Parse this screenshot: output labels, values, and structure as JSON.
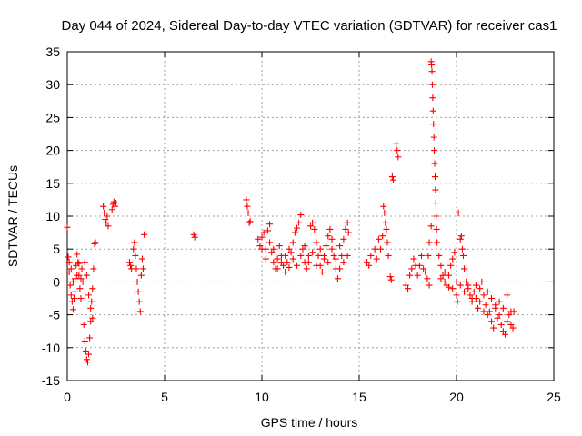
{
  "chart_data": {
    "type": "scatter",
    "title": "Day 044 of 2024, Sidereal Day-to-day VTEC variation (SDTVAR) for receiver cas1",
    "xlabel": "GPS time / hours",
    "ylabel": "SDTVAR / TECUs",
    "xlim": [
      0,
      25
    ],
    "ylim": [
      -15,
      35
    ],
    "xticks": [
      0,
      5,
      10,
      15,
      20,
      25
    ],
    "yticks": [
      -15,
      -10,
      -5,
      0,
      5,
      10,
      15,
      20,
      25,
      30,
      35
    ],
    "xtick_labels": [
      "0",
      "5",
      "10",
      "15",
      "20",
      "25"
    ],
    "ytick_labels": [
      "-15",
      "-10",
      "-5",
      "0",
      "5",
      "10",
      "15",
      "20",
      "25",
      "30",
      "35"
    ],
    "grid": true,
    "marker": "+",
    "color": "#ff0000",
    "series": [
      {
        "name": "SDTVAR",
        "points": [
          [
            0.0,
            8.3
          ],
          [
            0.05,
            3.8
          ],
          [
            0.1,
            1.5
          ],
          [
            0.15,
            -0.5
          ],
          [
            0.2,
            -2.0
          ],
          [
            0.25,
            -3.0
          ],
          [
            0.3,
            -4.2
          ],
          [
            0.35,
            -2.5
          ],
          [
            0.4,
            0.5
          ],
          [
            0.45,
            2.5
          ],
          [
            0.5,
            4.2
          ],
          [
            0.55,
            3.0
          ],
          [
            0.6,
            1.0
          ],
          [
            0.65,
            -1.0
          ],
          [
            0.7,
            -2.5
          ],
          [
            0.75,
            2.0
          ],
          [
            0.8,
            0.0
          ],
          [
            0.85,
            -6.5
          ],
          [
            0.9,
            -9.0
          ],
          [
            0.95,
            -10.5
          ],
          [
            1.0,
            -11.8
          ],
          [
            1.05,
            -12.2
          ],
          [
            1.1,
            -11.0
          ],
          [
            1.15,
            -8.5
          ],
          [
            1.2,
            -6.0
          ],
          [
            1.25,
            -3.0
          ],
          [
            1.3,
            -1.0
          ],
          [
            1.35,
            2.0
          ],
          [
            1.4,
            5.8
          ],
          [
            1.45,
            6.0
          ],
          [
            0.1,
            3.0
          ],
          [
            0.2,
            2.0
          ],
          [
            0.3,
            0.0
          ],
          [
            0.4,
            -1.5
          ],
          [
            0.5,
            1.0
          ],
          [
            0.6,
            2.8
          ],
          [
            0.7,
            0.5
          ],
          [
            0.9,
            3.0
          ],
          [
            1.0,
            1.0
          ],
          [
            1.1,
            -2.0
          ],
          [
            1.2,
            -4.0
          ],
          [
            1.3,
            -5.5
          ],
          [
            1.85,
            11.5
          ],
          [
            1.9,
            10.5
          ],
          [
            1.95,
            9.5
          ],
          [
            2.0,
            9.0
          ],
          [
            2.05,
            10.0
          ],
          [
            2.1,
            8.5
          ],
          [
            2.3,
            11.0
          ],
          [
            2.35,
            11.8
          ],
          [
            2.4,
            12.2
          ],
          [
            2.45,
            11.5
          ],
          [
            2.5,
            12.0
          ],
          [
            3.2,
            3.0
          ],
          [
            3.25,
            2.5
          ],
          [
            3.3,
            2.0
          ],
          [
            3.4,
            5.0
          ],
          [
            3.45,
            6.0
          ],
          [
            3.5,
            4.0
          ],
          [
            3.55,
            2.0
          ],
          [
            3.6,
            0.0
          ],
          [
            3.65,
            -1.5
          ],
          [
            3.7,
            -3.0
          ],
          [
            3.75,
            -4.5
          ],
          [
            3.8,
            1.0
          ],
          [
            3.85,
            3.5
          ],
          [
            3.9,
            2.0
          ],
          [
            3.95,
            7.2
          ],
          [
            6.5,
            7.2
          ],
          [
            6.55,
            6.8
          ],
          [
            9.2,
            12.5
          ],
          [
            9.25,
            11.5
          ],
          [
            9.3,
            10.5
          ],
          [
            9.35,
            9.0
          ],
          [
            9.4,
            9.2
          ],
          [
            9.8,
            6.5
          ],
          [
            9.9,
            5.5
          ],
          [
            10.0,
            6.8
          ],
          [
            10.1,
            7.5
          ],
          [
            10.2,
            5.0
          ],
          [
            10.3,
            7.8
          ],
          [
            10.4,
            8.8
          ],
          [
            10.5,
            4.5
          ],
          [
            10.6,
            3.0
          ],
          [
            10.7,
            2.0
          ],
          [
            10.8,
            3.5
          ],
          [
            10.9,
            5.5
          ],
          [
            11.0,
            4.0
          ],
          [
            11.1,
            2.5
          ],
          [
            11.2,
            1.5
          ],
          [
            11.3,
            3.0
          ],
          [
            11.4,
            2.2
          ],
          [
            11.5,
            4.5
          ],
          [
            11.6,
            6.0
          ],
          [
            11.7,
            7.5
          ],
          [
            11.8,
            8.2
          ],
          [
            11.9,
            9.0
          ],
          [
            12.0,
            10.2
          ],
          [
            12.1,
            5.0
          ],
          [
            12.2,
            3.0
          ],
          [
            12.3,
            2.0
          ],
          [
            12.4,
            4.0
          ],
          [
            12.5,
            8.5
          ],
          [
            12.6,
            9.0
          ],
          [
            12.7,
            8.0
          ],
          [
            12.8,
            6.0
          ],
          [
            12.9,
            4.0
          ],
          [
            13.0,
            2.5
          ],
          [
            13.1,
            1.5
          ],
          [
            13.2,
            3.5
          ],
          [
            13.3,
            5.5
          ],
          [
            13.4,
            7.0
          ],
          [
            13.5,
            8.0
          ],
          [
            13.6,
            6.5
          ],
          [
            13.7,
            4.0
          ],
          [
            13.8,
            2.0
          ],
          [
            13.9,
            0.5
          ],
          [
            14.0,
            2.0
          ],
          [
            14.1,
            4.0
          ],
          [
            14.2,
            6.5
          ],
          [
            14.3,
            8.0
          ],
          [
            14.4,
            9.0
          ],
          [
            14.45,
            7.5
          ],
          [
            10.0,
            5.0
          ],
          [
            10.2,
            3.5
          ],
          [
            10.4,
            6.0
          ],
          [
            10.6,
            5.0
          ],
          [
            10.8,
            2.0
          ],
          [
            11.0,
            3.0
          ],
          [
            11.2,
            4.0
          ],
          [
            11.4,
            5.0
          ],
          [
            11.6,
            3.5
          ],
          [
            11.8,
            2.5
          ],
          [
            12.0,
            4.0
          ],
          [
            12.2,
            5.5
          ],
          [
            12.4,
            3.0
          ],
          [
            12.6,
            4.5
          ],
          [
            12.8,
            2.5
          ],
          [
            13.0,
            5.0
          ],
          [
            13.2,
            4.0
          ],
          [
            13.4,
            3.0
          ],
          [
            13.6,
            5.0
          ],
          [
            13.8,
            3.5
          ],
          [
            14.0,
            5.5
          ],
          [
            14.2,
            3.0
          ],
          [
            14.4,
            4.0
          ],
          [
            15.4,
            3.0
          ],
          [
            15.5,
            2.5
          ],
          [
            15.6,
            4.0
          ],
          [
            15.8,
            5.0
          ],
          [
            15.9,
            3.5
          ],
          [
            16.0,
            6.5
          ],
          [
            16.1,
            5.0
          ],
          [
            16.2,
            7.0
          ],
          [
            16.25,
            11.5
          ],
          [
            16.3,
            10.5
          ],
          [
            16.35,
            9.0
          ],
          [
            16.4,
            8.0
          ],
          [
            16.45,
            6.0
          ],
          [
            16.5,
            4.0
          ],
          [
            16.6,
            0.8
          ],
          [
            16.65,
            0.3
          ],
          [
            16.7,
            16.0
          ],
          [
            16.75,
            15.5
          ],
          [
            16.9,
            21.0
          ],
          [
            16.95,
            20.0
          ],
          [
            17.0,
            19.0
          ],
          [
            17.4,
            -0.5
          ],
          [
            17.5,
            -1.0
          ],
          [
            17.6,
            1.0
          ],
          [
            17.7,
            2.0
          ],
          [
            17.8,
            3.5
          ],
          [
            17.9,
            2.5
          ],
          [
            18.0,
            1.0
          ],
          [
            18.1,
            2.5
          ],
          [
            18.2,
            4.0
          ],
          [
            18.3,
            2.0
          ],
          [
            18.4,
            1.5
          ],
          [
            18.5,
            0.5
          ],
          [
            18.6,
            -0.5
          ],
          [
            18.7,
            33.5
          ],
          [
            18.72,
            33.0
          ],
          [
            18.74,
            32.0
          ],
          [
            18.76,
            30.0
          ],
          [
            18.78,
            28.0
          ],
          [
            18.8,
            26.0
          ],
          [
            18.82,
            24.0
          ],
          [
            18.84,
            22.0
          ],
          [
            18.86,
            20.0
          ],
          [
            18.88,
            18.0
          ],
          [
            18.9,
            16.0
          ],
          [
            18.92,
            14.0
          ],
          [
            18.94,
            12.0
          ],
          [
            18.96,
            10.0
          ],
          [
            18.98,
            8.0
          ],
          [
            19.0,
            6.0
          ],
          [
            18.7,
            8.5
          ],
          [
            18.6,
            6.0
          ],
          [
            18.55,
            4.0
          ],
          [
            19.1,
            4.0
          ],
          [
            19.2,
            2.5
          ],
          [
            19.3,
            1.0
          ],
          [
            19.4,
            0.0
          ],
          [
            19.5,
            -0.5
          ],
          [
            19.6,
            1.0
          ],
          [
            19.7,
            2.5
          ],
          [
            19.8,
            3.5
          ],
          [
            19.9,
            4.5
          ],
          [
            20.0,
            -2.0
          ],
          [
            20.05,
            -3.0
          ],
          [
            20.1,
            10.5
          ],
          [
            20.2,
            6.5
          ],
          [
            20.25,
            7.0
          ],
          [
            20.3,
            5.0
          ],
          [
            20.35,
            4.0
          ],
          [
            20.4,
            2.0
          ],
          [
            20.5,
            0.0
          ],
          [
            20.6,
            -1.0
          ],
          [
            20.7,
            -2.0
          ],
          [
            20.8,
            -3.0
          ],
          [
            20.9,
            -1.5
          ],
          [
            21.0,
            -2.5
          ],
          [
            21.1,
            -4.0
          ],
          [
            21.2,
            -1.0
          ],
          [
            21.3,
            0.0
          ],
          [
            21.4,
            -2.0
          ],
          [
            21.5,
            -3.5
          ],
          [
            21.6,
            -5.0
          ],
          [
            21.7,
            -4.5
          ],
          [
            21.8,
            -6.0
          ],
          [
            21.9,
            -7.0
          ],
          [
            22.0,
            -4.0
          ],
          [
            22.1,
            -5.5
          ],
          [
            22.2,
            -3.0
          ],
          [
            22.3,
            -6.5
          ],
          [
            22.4,
            -7.5
          ],
          [
            22.5,
            -8.0
          ],
          [
            22.6,
            -6.0
          ],
          [
            22.7,
            -5.0
          ],
          [
            22.8,
            -6.5
          ],
          [
            22.9,
            -7.0
          ],
          [
            22.95,
            -4.5
          ],
          [
            19.2,
            0.5
          ],
          [
            19.4,
            1.5
          ],
          [
            19.6,
            -0.8
          ],
          [
            19.8,
            -1.0
          ],
          [
            20.0,
            0.0
          ],
          [
            20.2,
            -0.5
          ],
          [
            20.4,
            -1.5
          ],
          [
            20.6,
            -0.5
          ],
          [
            20.8,
            -2.5
          ],
          [
            21.0,
            -0.5
          ],
          [
            21.2,
            -3.0
          ],
          [
            21.4,
            -4.5
          ],
          [
            21.6,
            -1.5
          ],
          [
            21.8,
            -2.5
          ],
          [
            22.0,
            -3.5
          ],
          [
            22.2,
            -5.0
          ],
          [
            22.4,
            -4.0
          ],
          [
            22.6,
            -2.0
          ],
          [
            22.8,
            -4.5
          ]
        ]
      }
    ]
  }
}
